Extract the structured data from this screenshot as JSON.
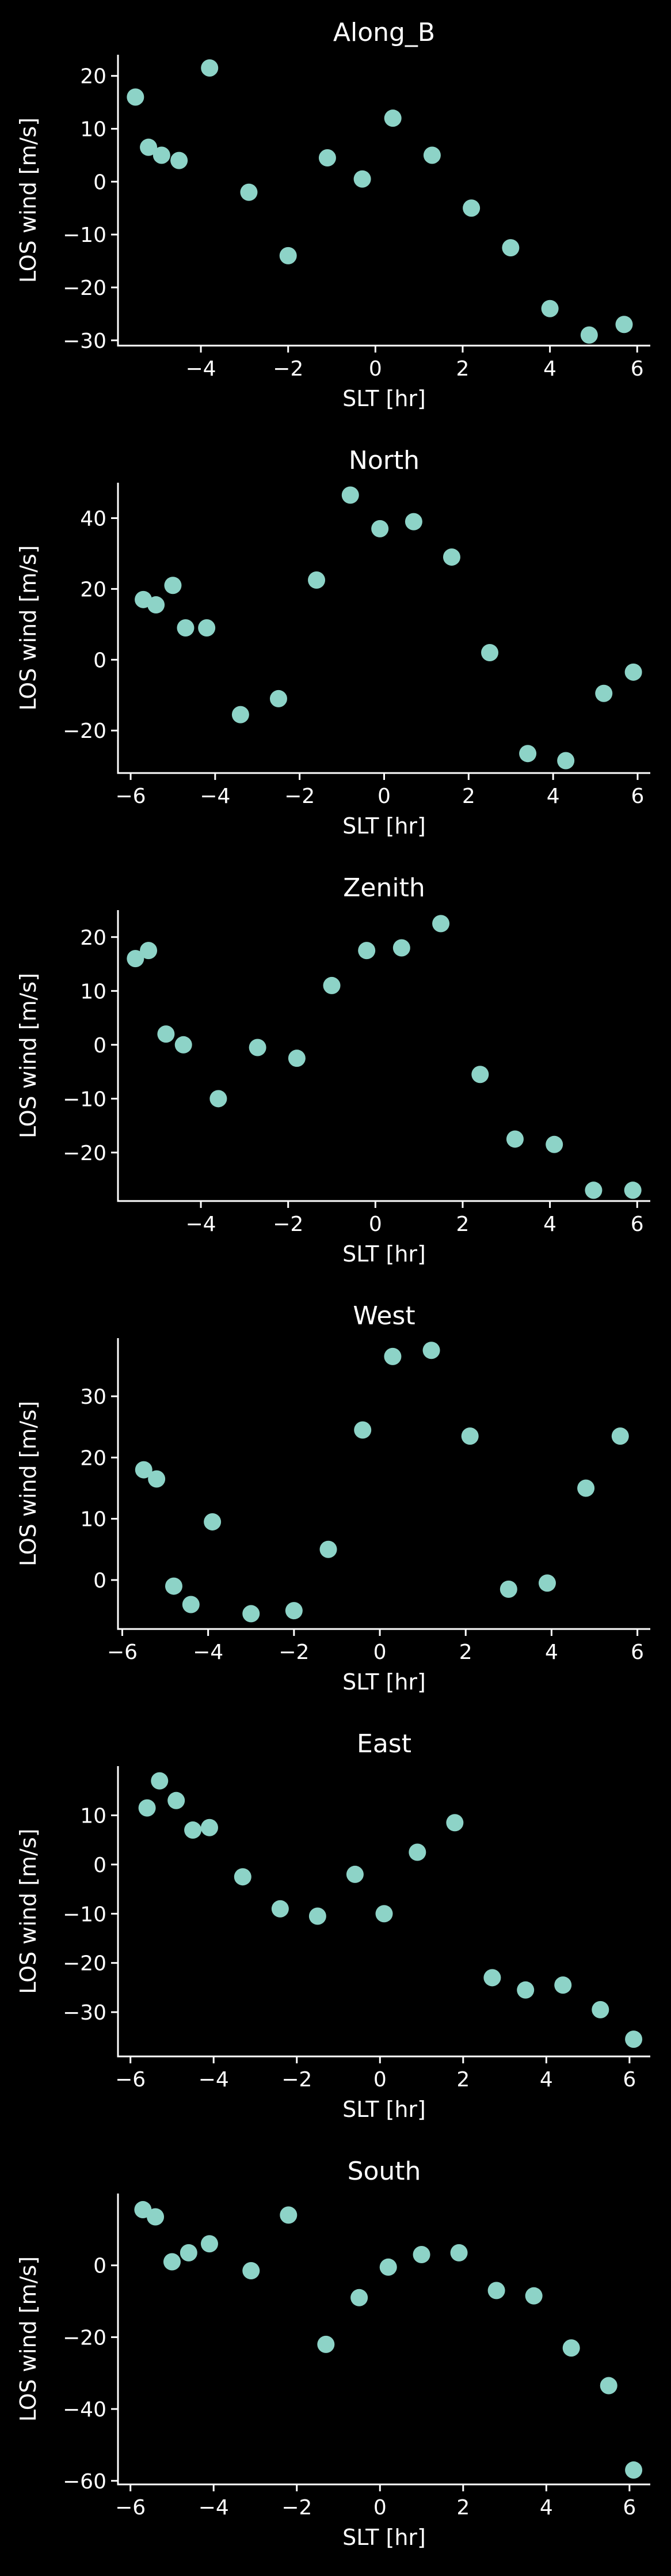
{
  "figure": {
    "background": "#000000",
    "marker_color": "#8dd3c7",
    "text_color": "#ffffff"
  },
  "chart_data": [
    {
      "type": "scatter",
      "title": "Along_B",
      "xlabel": "SLT [hr]",
      "ylabel": "LOS wind [m/s]",
      "xlim": [
        -5.9,
        6.3
      ],
      "ylim": [
        -31,
        24
      ],
      "xticks": [
        -4,
        -2,
        0,
        2,
        4,
        6
      ],
      "yticks": [
        -30,
        -20,
        -10,
        0,
        10,
        20
      ],
      "grid": false,
      "points": [
        {
          "x": -5.5,
          "y": 16
        },
        {
          "x": -5.2,
          "y": 6.5
        },
        {
          "x": -4.9,
          "y": 5
        },
        {
          "x": -4.5,
          "y": 4
        },
        {
          "x": -3.8,
          "y": 21.5
        },
        {
          "x": -2.9,
          "y": -2
        },
        {
          "x": -2.0,
          "y": -14
        },
        {
          "x": -1.1,
          "y": 4.5
        },
        {
          "x": -0.3,
          "y": 0.5
        },
        {
          "x": 0.4,
          "y": 12
        },
        {
          "x": 1.3,
          "y": 5
        },
        {
          "x": 2.2,
          "y": -5
        },
        {
          "x": 3.1,
          "y": -12.5
        },
        {
          "x": 4.0,
          "y": -24
        },
        {
          "x": 4.9,
          "y": -29
        },
        {
          "x": 5.7,
          "y": -27
        }
      ]
    },
    {
      "type": "scatter",
      "title": "North",
      "xlabel": "SLT [hr]",
      "ylabel": "LOS wind [m/s]",
      "xlim": [
        -6.3,
        6.3
      ],
      "ylim": [
        -32,
        50
      ],
      "xticks": [
        -6,
        -4,
        -2,
        0,
        2,
        4,
        6
      ],
      "yticks": [
        -20,
        0,
        20,
        40
      ],
      "grid": false,
      "points": [
        {
          "x": -5.7,
          "y": 17
        },
        {
          "x": -5.4,
          "y": 15.5
        },
        {
          "x": -5.0,
          "y": 21
        },
        {
          "x": -4.7,
          "y": 9
        },
        {
          "x": -4.2,
          "y": 9
        },
        {
          "x": -3.4,
          "y": -15.5
        },
        {
          "x": -2.5,
          "y": -11
        },
        {
          "x": -1.6,
          "y": 22.5
        },
        {
          "x": -0.8,
          "y": 46.5
        },
        {
          "x": -0.1,
          "y": 37
        },
        {
          "x": 0.7,
          "y": 39
        },
        {
          "x": 1.6,
          "y": 29
        },
        {
          "x": 2.5,
          "y": 2
        },
        {
          "x": 3.4,
          "y": -26.5
        },
        {
          "x": 4.3,
          "y": -28.5
        },
        {
          "x": 5.2,
          "y": -9.5
        },
        {
          "x": 5.9,
          "y": -3.5
        }
      ]
    },
    {
      "type": "scatter",
      "title": "Zenith",
      "xlabel": "SLT [hr]",
      "ylabel": "LOS wind [m/s]",
      "xlim": [
        -5.9,
        6.3
      ],
      "ylim": [
        -29,
        25
      ],
      "xticks": [
        -4,
        -2,
        0,
        2,
        4,
        6
      ],
      "yticks": [
        -20,
        -10,
        0,
        10,
        20
      ],
      "grid": false,
      "points": [
        {
          "x": -5.5,
          "y": 16
        },
        {
          "x": -5.2,
          "y": 17.5
        },
        {
          "x": -4.8,
          "y": 2
        },
        {
          "x": -4.4,
          "y": 0
        },
        {
          "x": -3.6,
          "y": -10
        },
        {
          "x": -2.7,
          "y": -0.5
        },
        {
          "x": -1.8,
          "y": -2.5
        },
        {
          "x": -1.0,
          "y": 11
        },
        {
          "x": -0.2,
          "y": 17.5
        },
        {
          "x": 0.6,
          "y": 18
        },
        {
          "x": 1.5,
          "y": 22.5
        },
        {
          "x": 2.4,
          "y": -5.5
        },
        {
          "x": 3.2,
          "y": -17.5
        },
        {
          "x": 4.1,
          "y": -18.5
        },
        {
          "x": 5.0,
          "y": -27
        },
        {
          "x": 5.9,
          "y": -27
        }
      ]
    },
    {
      "type": "scatter",
      "title": "West",
      "xlabel": "SLT [hr]",
      "ylabel": "LOS wind [m/s]",
      "xlim": [
        -6.1,
        6.3
      ],
      "ylim": [
        -8,
        39.5
      ],
      "xticks": [
        -6,
        -4,
        -2,
        0,
        2,
        4,
        6
      ],
      "yticks": [
        0,
        10,
        20,
        30
      ],
      "grid": false,
      "points": [
        {
          "x": -5.5,
          "y": 18
        },
        {
          "x": -5.2,
          "y": 16.5
        },
        {
          "x": -4.8,
          "y": -1
        },
        {
          "x": -4.4,
          "y": -4
        },
        {
          "x": -3.9,
          "y": 9.5
        },
        {
          "x": -3.0,
          "y": -5.5
        },
        {
          "x": -2.0,
          "y": -5
        },
        {
          "x": -1.2,
          "y": 5
        },
        {
          "x": -0.4,
          "y": 24.5
        },
        {
          "x": 0.3,
          "y": 36.5
        },
        {
          "x": 1.2,
          "y": 37.5
        },
        {
          "x": 2.1,
          "y": 23.5
        },
        {
          "x": 3.0,
          "y": -1.5
        },
        {
          "x": 3.9,
          "y": -0.5
        },
        {
          "x": 4.8,
          "y": 15
        },
        {
          "x": 5.6,
          "y": 23.5
        }
      ]
    },
    {
      "type": "scatter",
      "title": "East",
      "xlabel": "SLT [hr]",
      "ylabel": "LOS wind [m/s]",
      "xlim": [
        -6.3,
        6.5
      ],
      "ylim": [
        -39,
        20
      ],
      "xticks": [
        -6,
        -4,
        -2,
        0,
        2,
        4,
        6
      ],
      "yticks": [
        -30,
        -20,
        -10,
        0,
        10
      ],
      "grid": false,
      "points": [
        {
          "x": -5.6,
          "y": 11.5
        },
        {
          "x": -5.3,
          "y": 17
        },
        {
          "x": -4.9,
          "y": 13
        },
        {
          "x": -4.5,
          "y": 7
        },
        {
          "x": -4.1,
          "y": 7.5
        },
        {
          "x": -3.3,
          "y": -2.5
        },
        {
          "x": -2.4,
          "y": -9
        },
        {
          "x": -1.5,
          "y": -10.5
        },
        {
          "x": -0.6,
          "y": -2
        },
        {
          "x": 0.1,
          "y": -10
        },
        {
          "x": 0.9,
          "y": 2.5
        },
        {
          "x": 1.8,
          "y": 8.5
        },
        {
          "x": 2.7,
          "y": -23
        },
        {
          "x": 3.5,
          "y": -25.5
        },
        {
          "x": 4.4,
          "y": -24.5
        },
        {
          "x": 5.3,
          "y": -29.5
        },
        {
          "x": 6.1,
          "y": -35.5
        }
      ]
    },
    {
      "type": "scatter",
      "title": "South",
      "xlabel": "SLT [hr]",
      "ylabel": "LOS wind [m/s]",
      "xlim": [
        -6.3,
        6.5
      ],
      "ylim": [
        -61,
        20
      ],
      "xticks": [
        -6,
        -4,
        -2,
        0,
        2,
        4,
        6
      ],
      "yticks": [
        -60,
        -40,
        -20,
        0
      ],
      "grid": false,
      "points": [
        {
          "x": -5.7,
          "y": 15.5
        },
        {
          "x": -5.4,
          "y": 13.5
        },
        {
          "x": -5.0,
          "y": 1
        },
        {
          "x": -4.6,
          "y": 3.5
        },
        {
          "x": -4.1,
          "y": 6
        },
        {
          "x": -3.1,
          "y": -1.5
        },
        {
          "x": -2.2,
          "y": 14
        },
        {
          "x": -1.3,
          "y": -22
        },
        {
          "x": -0.5,
          "y": -9
        },
        {
          "x": 0.2,
          "y": -0.5
        },
        {
          "x": 1.0,
          "y": 3
        },
        {
          "x": 1.9,
          "y": 3.5
        },
        {
          "x": 2.8,
          "y": -7
        },
        {
          "x": 3.7,
          "y": -8.5
        },
        {
          "x": 4.6,
          "y": -23
        },
        {
          "x": 5.5,
          "y": -33.5
        },
        {
          "x": 6.1,
          "y": -57
        }
      ]
    }
  ]
}
